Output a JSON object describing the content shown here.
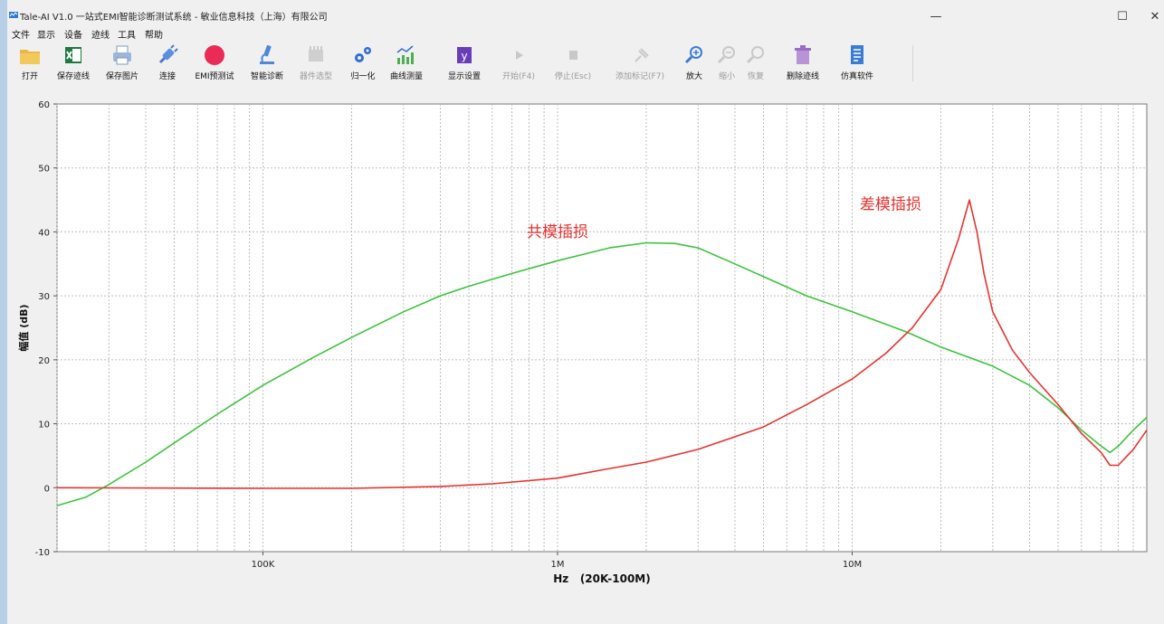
{
  "window": {
    "title": "Tale-AI V1.0 一站式EMI智能诊断测试系统 - 敏业信息科技（上海）有限公司",
    "controls": {
      "minimize": "—",
      "maximize": "☐",
      "close": "✕"
    }
  },
  "menu": [
    "文件",
    "显示",
    "设备",
    "迹线",
    "工具",
    "帮助"
  ],
  "toolbar": [
    {
      "label": "打开",
      "icon": "folder-icon",
      "enabled": true
    },
    {
      "label": "保存迹线",
      "icon": "excel-icon",
      "enabled": true
    },
    {
      "label": "保存图片",
      "icon": "printer-icon",
      "enabled": true
    },
    {
      "label": "连接",
      "icon": "plug-icon",
      "enabled": true
    },
    {
      "label": "EMI预测试",
      "icon": "record-icon",
      "enabled": true
    },
    {
      "label": "智能诊断",
      "icon": "microscope-icon",
      "enabled": true
    },
    {
      "label": "器件选型",
      "icon": "component-icon",
      "enabled": false
    },
    {
      "label": "归一化",
      "icon": "gears-icon",
      "enabled": true
    },
    {
      "label": "曲线测量",
      "icon": "curve-measure-icon",
      "enabled": true
    },
    {
      "label": "显示设置",
      "icon": "y-axis-icon",
      "enabled": true
    },
    {
      "label": "开始(F4)",
      "icon": "play-icon",
      "enabled": false
    },
    {
      "label": "停止(Esc)",
      "icon": "stop-icon",
      "enabled": false
    },
    {
      "label": "添加标记(F7)",
      "icon": "marker-icon",
      "enabled": false
    },
    {
      "label": "放大",
      "icon": "zoom-in-icon",
      "enabled": true
    },
    {
      "label": "缩小",
      "icon": "zoom-out-icon",
      "enabled": false
    },
    {
      "label": "恢复",
      "icon": "restore-icon",
      "enabled": false
    },
    {
      "label": "删除迹线",
      "icon": "trash-icon",
      "enabled": true
    },
    {
      "label": "仿真软件",
      "icon": "document-icon",
      "enabled": true
    }
  ],
  "chart_data": {
    "type": "line",
    "xscale": "log",
    "xlim": [
      20000,
      100000000
    ],
    "ylim": [
      -10,
      60
    ],
    "yticks": [
      -10,
      0,
      10,
      20,
      30,
      40,
      50,
      60
    ],
    "xticks": [
      {
        "value": 100000,
        "label": "100K"
      },
      {
        "value": 1000000,
        "label": "1M"
      },
      {
        "value": 10000000,
        "label": "10M"
      }
    ],
    "xlabel": "Hz   (20K-100M)",
    "ylabel": "幅值 (dB)",
    "grid": true,
    "series": [
      {
        "name": "共模插损",
        "color": "#3cc43c",
        "points": [
          [
            20000,
            -2.8
          ],
          [
            25000,
            -1.5
          ],
          [
            30000,
            0.5
          ],
          [
            40000,
            4
          ],
          [
            50000,
            7
          ],
          [
            70000,
            11.5
          ],
          [
            100000,
            16
          ],
          [
            150000,
            20.5
          ],
          [
            200000,
            23.5
          ],
          [
            300000,
            27.5
          ],
          [
            400000,
            30
          ],
          [
            500000,
            31.5
          ],
          [
            700000,
            33.5
          ],
          [
            1000000,
            35.5
          ],
          [
            1500000,
            37.5
          ],
          [
            2000000,
            38.3
          ],
          [
            2500000,
            38.2
          ],
          [
            3000000,
            37.5
          ],
          [
            4000000,
            35
          ],
          [
            5000000,
            33
          ],
          [
            7000000,
            30
          ],
          [
            10000000,
            27.5
          ],
          [
            15000000,
            24.5
          ],
          [
            20000000,
            22
          ],
          [
            30000000,
            19
          ],
          [
            40000000,
            16
          ],
          [
            50000000,
            12.5
          ],
          [
            60000000,
            9
          ],
          [
            70000000,
            6.5
          ],
          [
            75000000,
            5.5
          ],
          [
            80000000,
            6.5
          ],
          [
            90000000,
            9
          ],
          [
            100000000,
            11
          ]
        ]
      },
      {
        "name": "差模插损",
        "color": "#e8322f",
        "points": [
          [
            20000,
            0
          ],
          [
            100000,
            -0.1
          ],
          [
            200000,
            -0.1
          ],
          [
            400000,
            0.2
          ],
          [
            600000,
            0.6
          ],
          [
            1000000,
            1.5
          ],
          [
            1500000,
            3
          ],
          [
            2000000,
            4
          ],
          [
            3000000,
            6
          ],
          [
            5000000,
            9.5
          ],
          [
            7000000,
            13
          ],
          [
            10000000,
            17
          ],
          [
            13000000,
            21
          ],
          [
            16000000,
            25
          ],
          [
            20000000,
            31
          ],
          [
            23000000,
            39
          ],
          [
            25000000,
            45
          ],
          [
            26500000,
            40
          ],
          [
            28000000,
            33.5
          ],
          [
            30000000,
            27.5
          ],
          [
            35000000,
            21.5
          ],
          [
            40000000,
            18
          ],
          [
            50000000,
            13
          ],
          [
            60000000,
            8.5
          ],
          [
            70000000,
            5.5
          ],
          [
            75000000,
            3.5
          ],
          [
            80000000,
            3.5
          ],
          [
            90000000,
            6
          ],
          [
            100000000,
            9
          ]
        ]
      }
    ],
    "annotations": [
      {
        "text": "共模插损",
        "x": 1000000,
        "y": 39.2,
        "color": "#e8322f"
      },
      {
        "text": "差模插损",
        "x": 13500000,
        "y": 43.5,
        "color": "#e8322f"
      }
    ]
  }
}
